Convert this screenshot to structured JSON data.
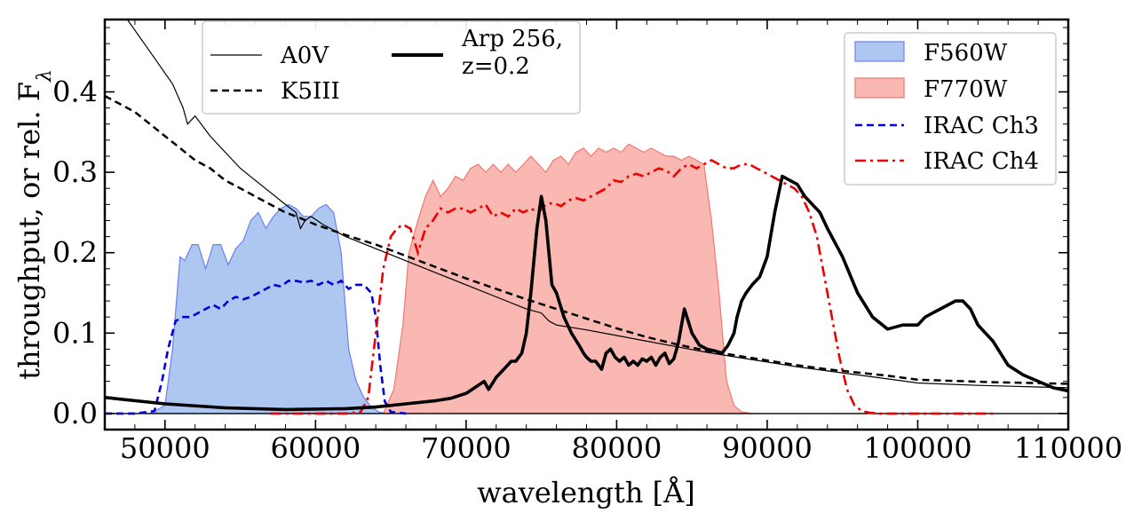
{
  "chart_data": {
    "type": "line",
    "title": "",
    "xlabel": "wavelength [Å]",
    "ylabel": "throughput, or rel. F",
    "ylabel_symbol": "F",
    "ylabel_subscript": "λ",
    "xlim": [
      46000,
      110000
    ],
    "ylim": [
      -0.02,
      0.49
    ],
    "x_ticks": [
      50000,
      60000,
      70000,
      80000,
      90000,
      100000,
      110000
    ],
    "x_tick_labels": [
      "50000",
      "60000",
      "70000",
      "80000",
      "90000",
      "100000",
      "110000"
    ],
    "y_ticks": [
      0.0,
      0.1,
      0.2,
      0.3,
      0.4
    ],
    "y_tick_labels": [
      "0.0",
      "0.1",
      "0.2",
      "0.3",
      "0.4"
    ],
    "grid": false,
    "legends": [
      {
        "position": "top-center",
        "ncol": 2,
        "entries": [
          "A0V",
          "K5III",
          "Arp 256,",
          "z=0.2"
        ]
      },
      {
        "position": "top-right",
        "ncol": 1,
        "entries": [
          "F560W",
          "F770W",
          "IRAC Ch3",
          "IRAC Ch4"
        ]
      }
    ],
    "colors": {
      "f560w_fill": "#aec7f0",
      "f560w_edge": "#6b7ff0",
      "f770w_fill": "#f9b8b2",
      "f770w_edge": "#f07870",
      "irac_ch3": "#0000dd",
      "irac_ch4": "#ee0000",
      "black": "#000000"
    },
    "series": [
      {
        "name": "F560W",
        "kind": "fill",
        "x": [
          49000,
          50000,
          50500,
          51000,
          51300,
          51800,
          52200,
          52700,
          53200,
          53700,
          54200,
          54700,
          55200,
          55700,
          56200,
          56700,
          57200,
          57700,
          58200,
          58700,
          59200,
          59700,
          60200,
          60700,
          61200,
          61700,
          62200,
          62700,
          63200,
          63700,
          64200,
          64700
        ],
        "y": [
          0,
          0.01,
          0.08,
          0.195,
          0.19,
          0.21,
          0.21,
          0.18,
          0.21,
          0.21,
          0.185,
          0.205,
          0.215,
          0.24,
          0.25,
          0.23,
          0.245,
          0.255,
          0.26,
          0.255,
          0.245,
          0.245,
          0.255,
          0.26,
          0.25,
          0.2,
          0.08,
          0.04,
          0.02,
          0.008,
          0.002,
          0
        ]
      },
      {
        "name": "F770W",
        "kind": "fill",
        "x": [
          64500,
          65200,
          65800,
          66200,
          66800,
          67300,
          67800,
          68300,
          68800,
          69300,
          69800,
          70300,
          70800,
          71300,
          71800,
          72300,
          72800,
          73300,
          73800,
          74300,
          74800,
          75300,
          75800,
          76300,
          76800,
          77300,
          77800,
          78300,
          78800,
          79300,
          79800,
          80300,
          80800,
          81300,
          81800,
          82300,
          82800,
          83300,
          83800,
          84300,
          84800,
          85300,
          85800,
          86300,
          86800,
          87300,
          87800,
          88300,
          89000
        ],
        "y": [
          0,
          0.03,
          0.11,
          0.2,
          0.24,
          0.27,
          0.29,
          0.27,
          0.28,
          0.295,
          0.29,
          0.305,
          0.31,
          0.3,
          0.31,
          0.3,
          0.31,
          0.3,
          0.31,
          0.32,
          0.31,
          0.3,
          0.315,
          0.32,
          0.31,
          0.325,
          0.33,
          0.32,
          0.33,
          0.325,
          0.33,
          0.325,
          0.335,
          0.33,
          0.325,
          0.33,
          0.325,
          0.32,
          0.32,
          0.315,
          0.32,
          0.315,
          0.31,
          0.24,
          0.15,
          0.04,
          0.01,
          0.002,
          0
        ]
      },
      {
        "name": "IRAC Ch3",
        "kind": "line",
        "x": [
          46000,
          48000,
          49300,
          49800,
          50200,
          50700,
          51200,
          51700,
          52200,
          52700,
          53200,
          53700,
          54200,
          54700,
          55200,
          55700,
          56200,
          56700,
          57200,
          57700,
          58200,
          58700,
          59200,
          59700,
          60200,
          60700,
          61200,
          61700,
          62200,
          62700,
          63200,
          63700,
          64000,
          64300,
          64600,
          65000,
          66000
        ],
        "y": [
          0,
          0,
          0.003,
          0.04,
          0.08,
          0.115,
          0.12,
          0.12,
          0.125,
          0.13,
          0.135,
          0.13,
          0.14,
          0.145,
          0.142,
          0.145,
          0.15,
          0.155,
          0.16,
          0.158,
          0.165,
          0.165,
          0.163,
          0.165,
          0.16,
          0.165,
          0.16,
          0.165,
          0.155,
          0.16,
          0.16,
          0.15,
          0.12,
          0.06,
          0.015,
          0.002,
          0
        ]
      },
      {
        "name": "IRAC Ch4",
        "kind": "line",
        "x": [
          57000,
          62000,
          63000,
          63500,
          64000,
          64500,
          65000,
          65400,
          65800,
          66300,
          66800,
          67300,
          67800,
          68300,
          68800,
          69300,
          69800,
          70300,
          70800,
          71300,
          71800,
          72300,
          72800,
          73300,
          73800,
          74300,
          74800,
          75300,
          75800,
          76300,
          76800,
          77300,
          77800,
          78300,
          78800,
          79300,
          79800,
          80300,
          80800,
          81300,
          81800,
          82300,
          82800,
          83300,
          83800,
          84300,
          84800,
          85300,
          85800,
          86300,
          86800,
          87300,
          87800,
          88300,
          88800,
          89300,
          89800,
          90300,
          90800,
          91300,
          91800,
          92300,
          92800,
          93300,
          93800,
          94300,
          94800,
          95300,
          95800,
          96300,
          96800,
          97500,
          99000,
          102000,
          105000
        ],
        "y": [
          0,
          0,
          0.002,
          0.02,
          0.1,
          0.18,
          0.22,
          0.23,
          0.235,
          0.23,
          0.2,
          0.23,
          0.24,
          0.255,
          0.25,
          0.255,
          0.255,
          0.25,
          0.255,
          0.26,
          0.245,
          0.25,
          0.245,
          0.255,
          0.25,
          0.255,
          0.25,
          0.26,
          0.262,
          0.258,
          0.265,
          0.268,
          0.265,
          0.27,
          0.275,
          0.28,
          0.29,
          0.288,
          0.295,
          0.298,
          0.295,
          0.3,
          0.305,
          0.302,
          0.295,
          0.305,
          0.31,
          0.305,
          0.31,
          0.315,
          0.31,
          0.305,
          0.305,
          0.31,
          0.31,
          0.305,
          0.3,
          0.295,
          0.29,
          0.285,
          0.28,
          0.27,
          0.25,
          0.22,
          0.17,
          0.12,
          0.07,
          0.03,
          0.01,
          0.003,
          0.001,
          0,
          0,
          0,
          0
        ]
      },
      {
        "name": "A0V",
        "kind": "line",
        "x": [
          46000,
          47500,
          49000,
          50500,
          51200,
          51500,
          52000,
          53000,
          54000,
          55000,
          56000,
          57000,
          58000,
          58700,
          59000,
          59300,
          59700,
          60500,
          62000,
          64000,
          66000,
          68000,
          70000,
          72000,
          74000,
          75000,
          75500,
          76000,
          78000,
          80000,
          82000,
          84000,
          86000,
          88000,
          90000,
          92000,
          94000,
          96000,
          98000,
          100000,
          104000,
          108000,
          110000
        ],
        "y": [
          0.52,
          0.49,
          0.45,
          0.41,
          0.38,
          0.36,
          0.37,
          0.345,
          0.325,
          0.305,
          0.29,
          0.275,
          0.26,
          0.25,
          0.23,
          0.24,
          0.245,
          0.235,
          0.22,
          0.205,
          0.19,
          0.175,
          0.16,
          0.145,
          0.13,
          0.125,
          0.115,
          0.11,
          0.104,
          0.097,
          0.09,
          0.083,
          0.076,
          0.07,
          0.064,
          0.058,
          0.053,
          0.048,
          0.043,
          0.038,
          0.035,
          0.033,
          0.032
        ]
      },
      {
        "name": "K5III",
        "kind": "line",
        "x": [
          46000,
          47000,
          48000,
          49000,
          50000,
          51000,
          52000,
          53000,
          54000,
          55000,
          56000,
          57000,
          58000,
          59000,
          60000,
          62000,
          64000,
          66000,
          68000,
          70000,
          72000,
          74000,
          76000,
          78000,
          80000,
          82000,
          84000,
          86000,
          88000,
          90000,
          92000,
          94000,
          96000,
          98000,
          100000,
          105000,
          110000
        ],
        "y": [
          0.395,
          0.385,
          0.375,
          0.36,
          0.345,
          0.33,
          0.315,
          0.305,
          0.29,
          0.28,
          0.27,
          0.26,
          0.25,
          0.243,
          0.235,
          0.222,
          0.21,
          0.196,
          0.182,
          0.168,
          0.155,
          0.142,
          0.13,
          0.118,
          0.106,
          0.095,
          0.086,
          0.078,
          0.072,
          0.066,
          0.06,
          0.055,
          0.051,
          0.047,
          0.042,
          0.039,
          0.037
        ]
      },
      {
        "name": "Arp 256, z=0.2",
        "kind": "line",
        "x": [
          46000,
          50000,
          54000,
          58000,
          62000,
          64000,
          66000,
          68000,
          69000,
          70000,
          70800,
          71200,
          71500,
          72000,
          72500,
          73000,
          73300,
          73700,
          74000,
          74300,
          74700,
          75000,
          75300,
          75700,
          76000,
          76500,
          77000,
          77500,
          77800,
          78000,
          78300,
          78600,
          78800,
          79000,
          79300,
          79600,
          79900,
          80200,
          80500,
          80800,
          81100,
          81400,
          81700,
          82000,
          82300,
          82600,
          82900,
          83200,
          83500,
          83800,
          84100,
          84500,
          85000,
          85500,
          86000,
          86500,
          87000,
          87400,
          87800,
          88000,
          88300,
          88600,
          89000,
          89500,
          90000,
          90500,
          91000,
          91500,
          92000,
          92500,
          93000,
          93500,
          94000,
          95000,
          96000,
          97000,
          98000,
          99000,
          99500,
          100000,
          100500,
          101000,
          101500,
          102000,
          102500,
          103000,
          103500,
          104000,
          105000,
          106000,
          107000,
          108000,
          109000,
          110000
        ],
        "y": [
          0.02,
          0.012,
          0.007,
          0.005,
          0.006,
          0.008,
          0.012,
          0.016,
          0.019,
          0.025,
          0.035,
          0.04,
          0.03,
          0.045,
          0.055,
          0.065,
          0.065,
          0.075,
          0.1,
          0.15,
          0.23,
          0.27,
          0.24,
          0.16,
          0.15,
          0.12,
          0.1,
          0.085,
          0.075,
          0.07,
          0.065,
          0.065,
          0.06,
          0.055,
          0.075,
          0.08,
          0.07,
          0.065,
          0.07,
          0.06,
          0.065,
          0.06,
          0.068,
          0.065,
          0.07,
          0.06,
          0.07,
          0.075,
          0.062,
          0.068,
          0.088,
          0.13,
          0.1,
          0.085,
          0.08,
          0.078,
          0.075,
          0.085,
          0.1,
          0.12,
          0.14,
          0.15,
          0.16,
          0.17,
          0.195,
          0.25,
          0.295,
          0.29,
          0.285,
          0.27,
          0.26,
          0.25,
          0.23,
          0.195,
          0.15,
          0.12,
          0.105,
          0.11,
          0.11,
          0.11,
          0.12,
          0.125,
          0.13,
          0.135,
          0.14,
          0.14,
          0.13,
          0.11,
          0.09,
          0.06,
          0.048,
          0.04,
          0.032,
          0.028
        ]
      },
      {
        "name": "zero-line",
        "kind": "line",
        "x": [
          46000,
          110000
        ],
        "y": [
          0,
          0
        ]
      }
    ]
  }
}
